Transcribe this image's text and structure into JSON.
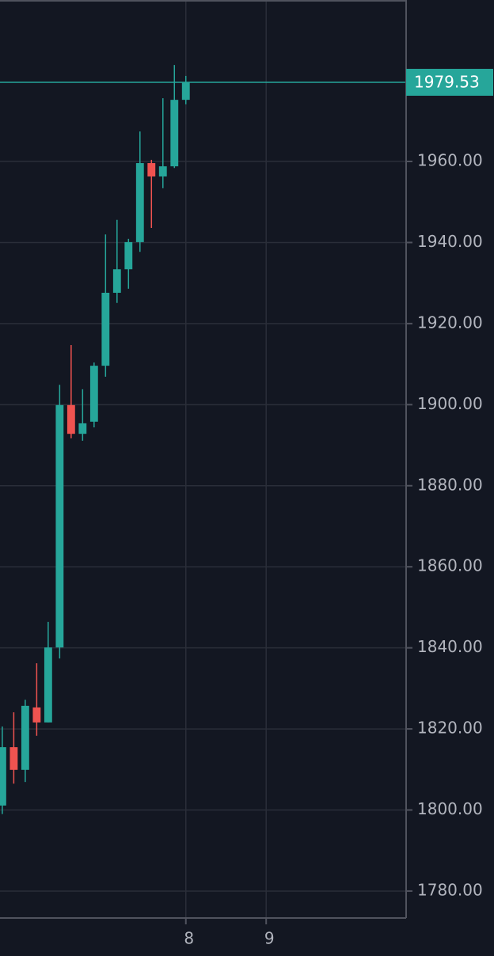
{
  "chart_data": {
    "type": "candlestick",
    "x": [
      0,
      1,
      2,
      3,
      4,
      5,
      6,
      7,
      8,
      9,
      10,
      11,
      12,
      13,
      14,
      15,
      16
    ],
    "open": [
      1801.1,
      1815.5,
      1809.9,
      1825.3,
      1821.6,
      1840.1,
      1899.9,
      1892.8,
      1895.8,
      1909.6,
      1927.6,
      1933.4,
      1940.1,
      1959.6,
      1956.3,
      1958.8,
      1975.2
    ],
    "high": [
      1820.6,
      1824.1,
      1827.2,
      1836.2,
      1846.4,
      1904.9,
      1914.7,
      1903.8,
      1910.4,
      1942.0,
      1945.6,
      1940.9,
      1967.4,
      1960.4,
      1975.6,
      1983.8,
      1981.1
    ],
    "low": [
      1799.0,
      1806.5,
      1806.9,
      1818.3,
      1821.6,
      1837.4,
      1891.7,
      1891.1,
      1894.4,
      1906.9,
      1925.1,
      1928.6,
      1937.7,
      1943.6,
      1953.4,
      1958.4,
      1974.1
    ],
    "close": [
      1815.5,
      1809.9,
      1825.7,
      1821.6,
      1840.1,
      1899.9,
      1892.8,
      1895.4,
      1909.6,
      1927.6,
      1933.4,
      1940.1,
      1959.6,
      1956.3,
      1958.8,
      1975.2,
      1979.53
    ],
    "up_color": "#26a69a",
    "down_color": "#ef5350",
    "xlim": [
      -0.2,
      35.2
    ],
    "xticks": [
      {
        "value": 16,
        "label": "8"
      },
      {
        "value": 23,
        "label": "9"
      }
    ],
    "ylim": [
      1773.35,
      1999.83
    ],
    "yticks": [
      {
        "value": 1780,
        "label": "1780.00"
      },
      {
        "value": 1800,
        "label": "1800.00"
      },
      {
        "value": 1820,
        "label": "1820.00"
      },
      {
        "value": 1840,
        "label": "1840.00"
      },
      {
        "value": 1860,
        "label": "1860.00"
      },
      {
        "value": 1880,
        "label": "1880.00"
      },
      {
        "value": 1900,
        "label": "1900.00"
      },
      {
        "value": 1920,
        "label": "1920.00"
      },
      {
        "value": 1940,
        "label": "1940.00"
      },
      {
        "value": 1960,
        "label": "1960.00"
      }
    ],
    "last_price": 1979.53,
    "grid": true
  }
}
